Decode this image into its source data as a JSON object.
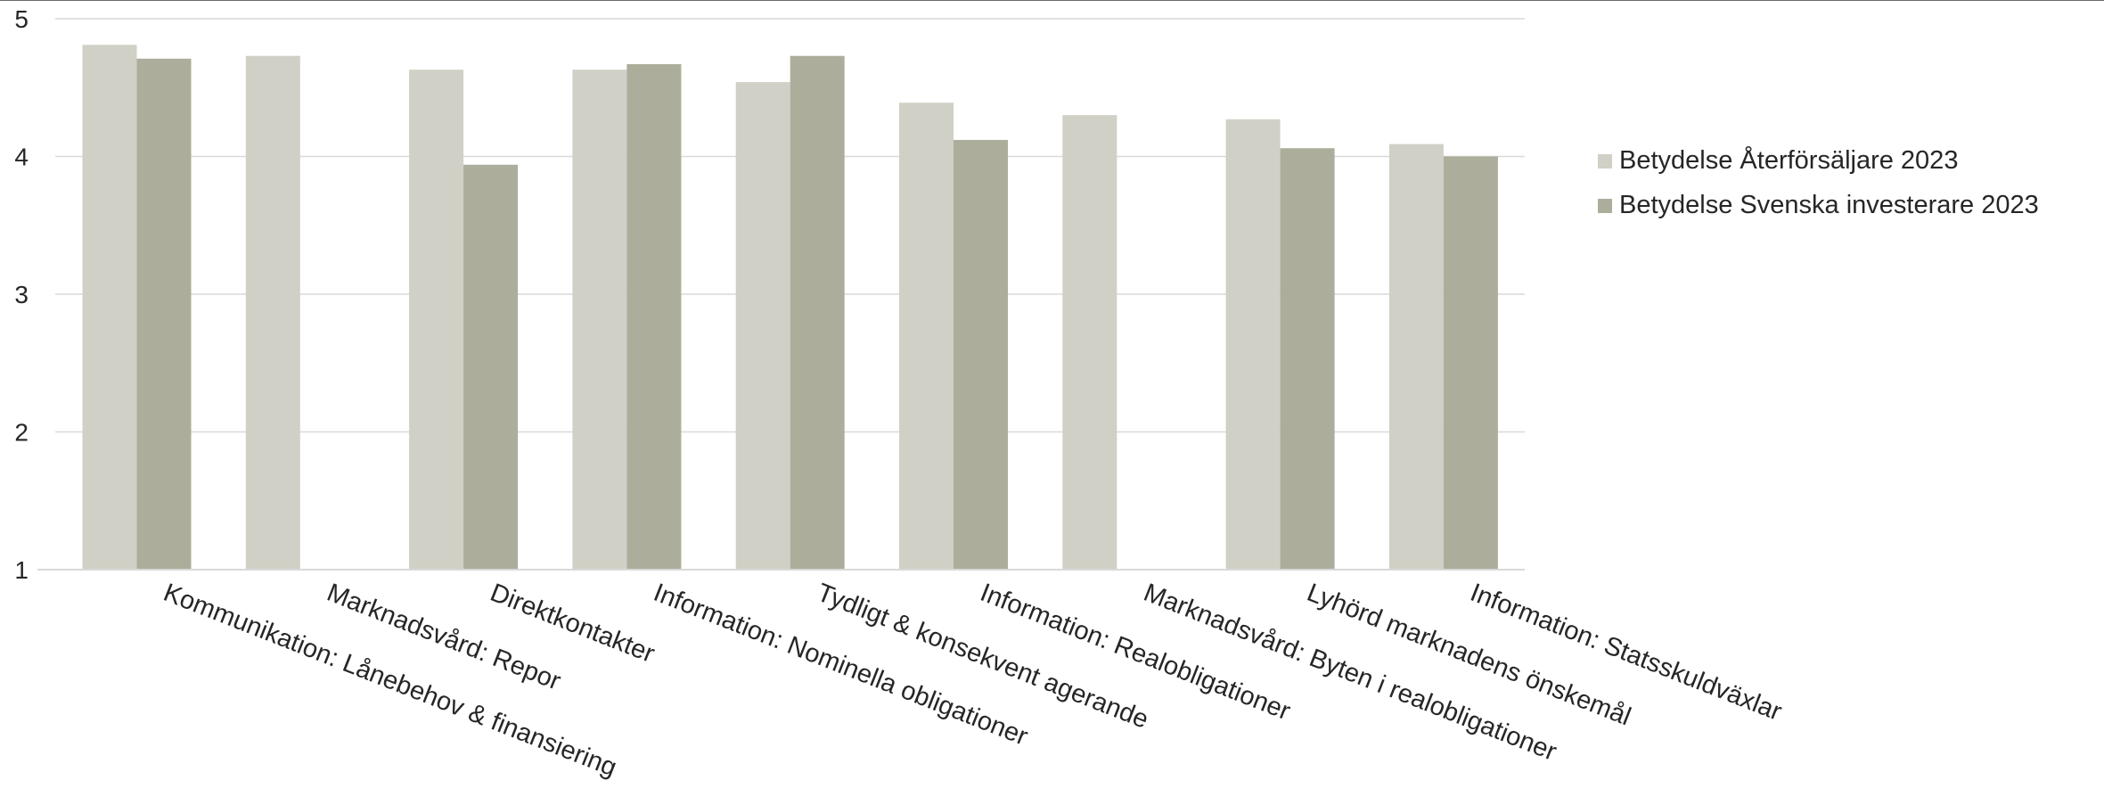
{
  "chart_data": {
    "type": "bar",
    "title": "",
    "xlabel": "",
    "ylabel": "",
    "ylim": [
      1,
      5
    ],
    "yticks": [
      1,
      2,
      3,
      4,
      5
    ],
    "grid": true,
    "legend_position": "right",
    "categories": [
      "Kommunikation: Lånebehov & finansiering",
      "Marknadsvård: Repor",
      "Direktkontakter",
      "Information: Nominella obligationer",
      "Tydligt & konsekvent agerande",
      "Information: Realobligationer",
      "Marknadsvård: Byten i realobligationer",
      "Lyhörd marknadens önskemål",
      "Information: Statsskuldväxlar"
    ],
    "series": [
      {
        "name": "Betydelse Återförsäljare 2023",
        "color": "#d0d0c6",
        "values": [
          4.81,
          4.73,
          4.63,
          4.63,
          4.54,
          4.39,
          4.3,
          4.27,
          4.09
        ]
      },
      {
        "name": "Betydelse Svenska investerare 2023",
        "color": "#adad9b",
        "values": [
          4.71,
          null,
          3.94,
          4.67,
          4.73,
          4.12,
          null,
          4.06,
          4.0
        ]
      }
    ]
  }
}
